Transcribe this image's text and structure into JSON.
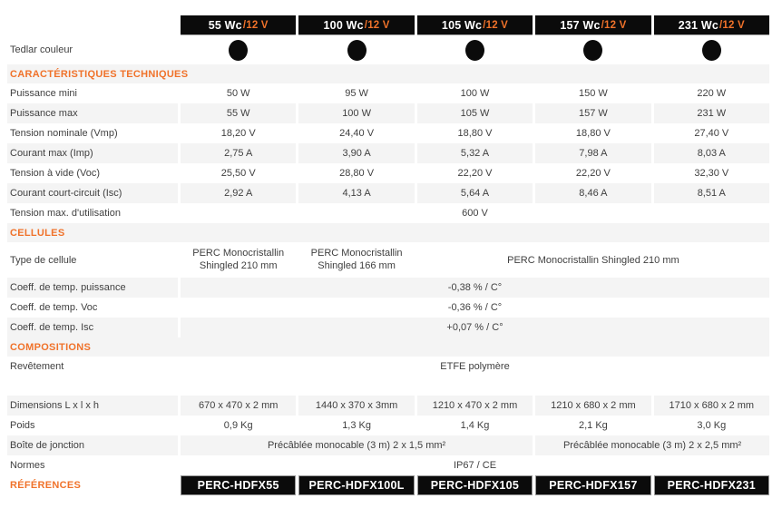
{
  "colors": {
    "accent": "#F0722A",
    "dark": "#0B0B0B",
    "row_alt": "#F4F4F4",
    "text": "#3F3F3F"
  },
  "header": {
    "columns": [
      {
        "power": "55 Wc",
        "voltage": "/12 V"
      },
      {
        "power": "100 Wc",
        "voltage": "/12 V"
      },
      {
        "power": "105 Wc",
        "voltage": "/12 V"
      },
      {
        "power": "157 Wc",
        "voltage": "/12 V"
      },
      {
        "power": "231 Wc",
        "voltage": "/12 V"
      }
    ]
  },
  "tedlar": {
    "label": "Tedlar couleur",
    "dot_color": "#0B0B0B"
  },
  "sections": {
    "technical": "CARACTÉRISTIQUES TECHNIQUES",
    "cells": "CELLULES",
    "compositions": "COMPOSITIONS",
    "references": "RÉFÉRENCES"
  },
  "rows": {
    "puissance_mini": {
      "label": "Puissance mini",
      "values": [
        "50 W",
        "95 W",
        "100 W",
        "150 W",
        "220 W"
      ]
    },
    "puissance_max": {
      "label": "Puissance max",
      "values": [
        "55 W",
        "100 W",
        "105 W",
        "157 W",
        "231 W"
      ]
    },
    "tension_nominale": {
      "label": "Tension nominale (Vmp)",
      "values": [
        "18,20 V",
        "24,40 V",
        "18,80 V",
        "18,80 V",
        "27,40 V"
      ]
    },
    "courant_max": {
      "label": "Courant max (Imp)",
      "values": [
        "2,75 A",
        "3,90 A",
        "5,32 A",
        "7,98 A",
        "8,03 A"
      ]
    },
    "tension_vide": {
      "label": "Tension à vide (Voc)",
      "values": [
        "25,50 V",
        "28,80 V",
        "22,20 V",
        "22,20 V",
        "32,30 V"
      ]
    },
    "courant_cc": {
      "label": "Courant court-circuit (Isc)",
      "values": [
        "2,92 A",
        "4,13 A",
        "5,64 A",
        "8,46 A",
        "8,51 A"
      ]
    },
    "tension_max_utilisation": {
      "label": "Tension max. d'utilisation",
      "value": "600 V"
    },
    "type_cellule": {
      "label": "Type de cellule",
      "value_col1": "PERC Monocristallin Shingled 210 mm",
      "value_col2": "PERC Monocristallin Shingled 166 mm",
      "value_col3_5": "PERC Monocristallin Shingled 210 mm"
    },
    "coeff_puissance": {
      "label": "Coeff. de temp. puissance",
      "value": "-0,38 % / C°"
    },
    "coeff_voc": {
      "label": "Coeff. de temp. Voc",
      "value": "-0,36 % / C°"
    },
    "coeff_isc": {
      "label": "Coeff. de temp. Isc",
      "value": "+0,07 % / C°"
    },
    "revetement": {
      "label": "Revêtement",
      "value": "ETFE polymère"
    },
    "dimensions": {
      "label": "Dimensions L x l x h",
      "values": [
        "670 x 470 x 2 mm",
        "1440 x 370 x 3mm",
        "1210 x 470 x 2 mm",
        "1210 x 680 x 2 mm",
        "1710 x 680 x 2 mm"
      ]
    },
    "poids": {
      "label": "Poids",
      "values": [
        "0,9 Kg",
        "1,3 Kg",
        "1,4 Kg",
        "2,1 Kg",
        "3,0 Kg"
      ]
    },
    "boite_jonction": {
      "label": "Boîte de jonction",
      "value_col1_3": "Précâblée monocable (3 m) 2 x 1,5 mm²",
      "value_col4_5": "Précâblée monocable (3 m) 2 x 2,5 mm²"
    },
    "normes": {
      "label": "Normes",
      "value": "IP67 / CE"
    }
  },
  "references": {
    "values": [
      "PERC-HDFX55",
      "PERC-HDFX100L",
      "PERC-HDFX105",
      "PERC-HDFX157",
      "PERC-HDFX231"
    ]
  }
}
